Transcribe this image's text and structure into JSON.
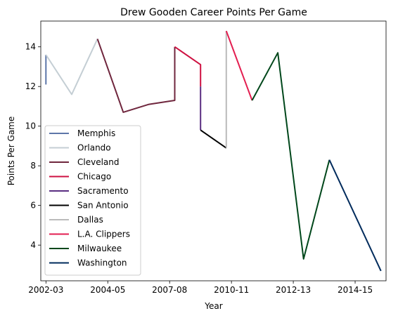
{
  "chart_data": {
    "type": "line",
    "title": "Drew Gooden Career Points Per Game",
    "xlabel": "Year",
    "ylabel": "Points Per Game",
    "x_ticks": [
      "2002-03",
      "2004-05",
      "2007-08",
      "2010-11",
      "2012-13",
      "2014-15"
    ],
    "y_ticks": [
      "4",
      "6",
      "8",
      "10",
      "12",
      "14"
    ],
    "xlim": [
      -0.2,
      13.2
    ],
    "ylim": [
      2.2,
      15.3
    ],
    "grid": false,
    "legend_position": "lower-left",
    "series": [
      {
        "name": "Memphis",
        "color": "#5d76a9",
        "points": [
          [
            0,
            12.1
          ],
          [
            0,
            13.6
          ]
        ]
      },
      {
        "name": "Orlando",
        "color": "#c4ced4",
        "points": [
          [
            0,
            13.6
          ],
          [
            1,
            11.6
          ],
          [
            2,
            14.4
          ]
        ]
      },
      {
        "name": "Cleveland",
        "color": "#6f263d",
        "points": [
          [
            2,
            14.4
          ],
          [
            3,
            10.7
          ],
          [
            4,
            11.1
          ],
          [
            5,
            11.3
          ],
          [
            5,
            14.0
          ]
        ]
      },
      {
        "name": "Chicago",
        "color": "#ce1141",
        "points": [
          [
            5,
            14.0
          ],
          [
            6,
            13.1
          ],
          [
            6,
            12.0
          ]
        ]
      },
      {
        "name": "Sacramento",
        "color": "#5a2d81",
        "points": [
          [
            6,
            12.0
          ],
          [
            6,
            9.8
          ]
        ]
      },
      {
        "name": "San Antonio",
        "color": "#000000",
        "points": [
          [
            6,
            9.8
          ],
          [
            7,
            8.9
          ]
        ]
      },
      {
        "name": "Dallas",
        "color": "#bbbbbb",
        "points": [
          [
            7,
            8.9
          ],
          [
            7,
            14.8
          ]
        ]
      },
      {
        "name": "L.A. Clippers",
        "color": "#e31e50",
        "points": [
          [
            7,
            14.8
          ],
          [
            8,
            11.3
          ]
        ]
      },
      {
        "name": "Milwaukee",
        "color": "#00471b",
        "points": [
          [
            8,
            11.3
          ],
          [
            9,
            13.7
          ],
          [
            10,
            3.3
          ],
          [
            11,
            8.3
          ]
        ]
      },
      {
        "name": "Washington",
        "color": "#002b5c",
        "points": [
          [
            11,
            8.3
          ],
          [
            13,
            2.7
          ]
        ]
      }
    ]
  }
}
